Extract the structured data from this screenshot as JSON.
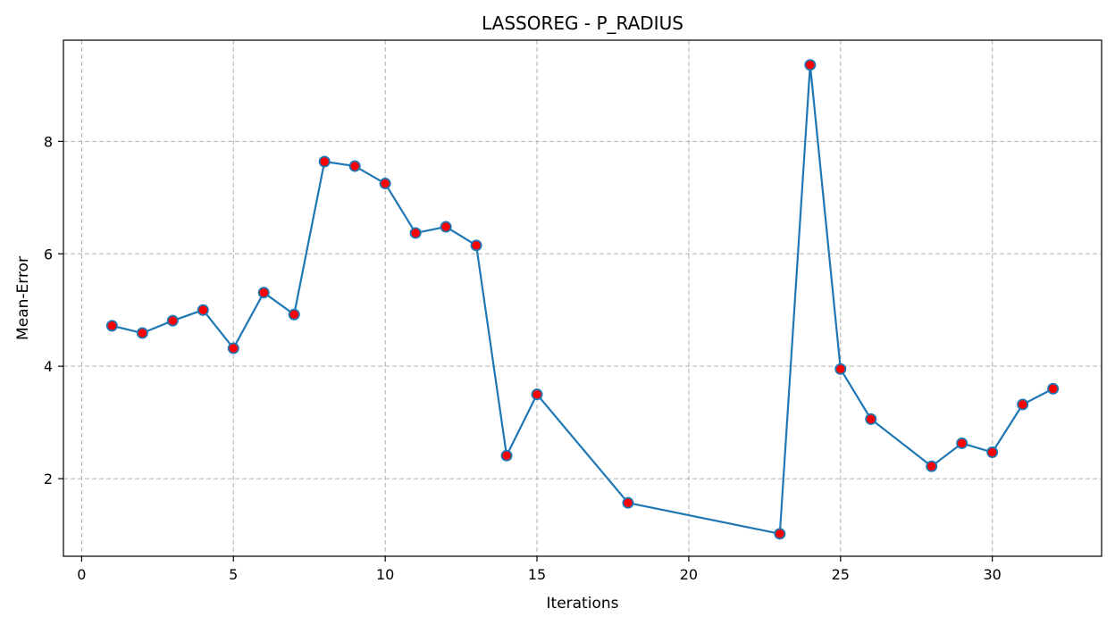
{
  "chart_data": {
    "type": "line",
    "title": "LASSOREG - P_RADIUS",
    "xlabel": "Iterations",
    "ylabel": "Mean-Error",
    "xlim": [
      -0.6,
      33.6
    ],
    "ylim": [
      0.62,
      9.8
    ],
    "xticks": [
      0,
      5,
      10,
      15,
      20,
      25,
      30
    ],
    "yticks": [
      2,
      4,
      6,
      8
    ],
    "grid": true,
    "x": [
      1,
      2,
      3,
      4,
      5,
      6,
      7,
      8,
      9,
      10,
      11,
      12,
      13,
      14,
      15,
      18,
      23,
      24,
      25,
      26,
      28,
      29,
      30,
      31,
      32
    ],
    "values": [
      4.72,
      4.59,
      4.81,
      5.0,
      4.32,
      5.31,
      4.92,
      7.64,
      7.56,
      7.25,
      6.37,
      6.48,
      6.15,
      2.41,
      3.5,
      1.57,
      1.02,
      9.36,
      3.95,
      3.06,
      2.22,
      2.63,
      2.47,
      3.32,
      3.6
    ],
    "colors": {
      "line": "#1f77b4",
      "marker_fill": "#ff0000",
      "marker_edge": "#1f77b4"
    }
  }
}
